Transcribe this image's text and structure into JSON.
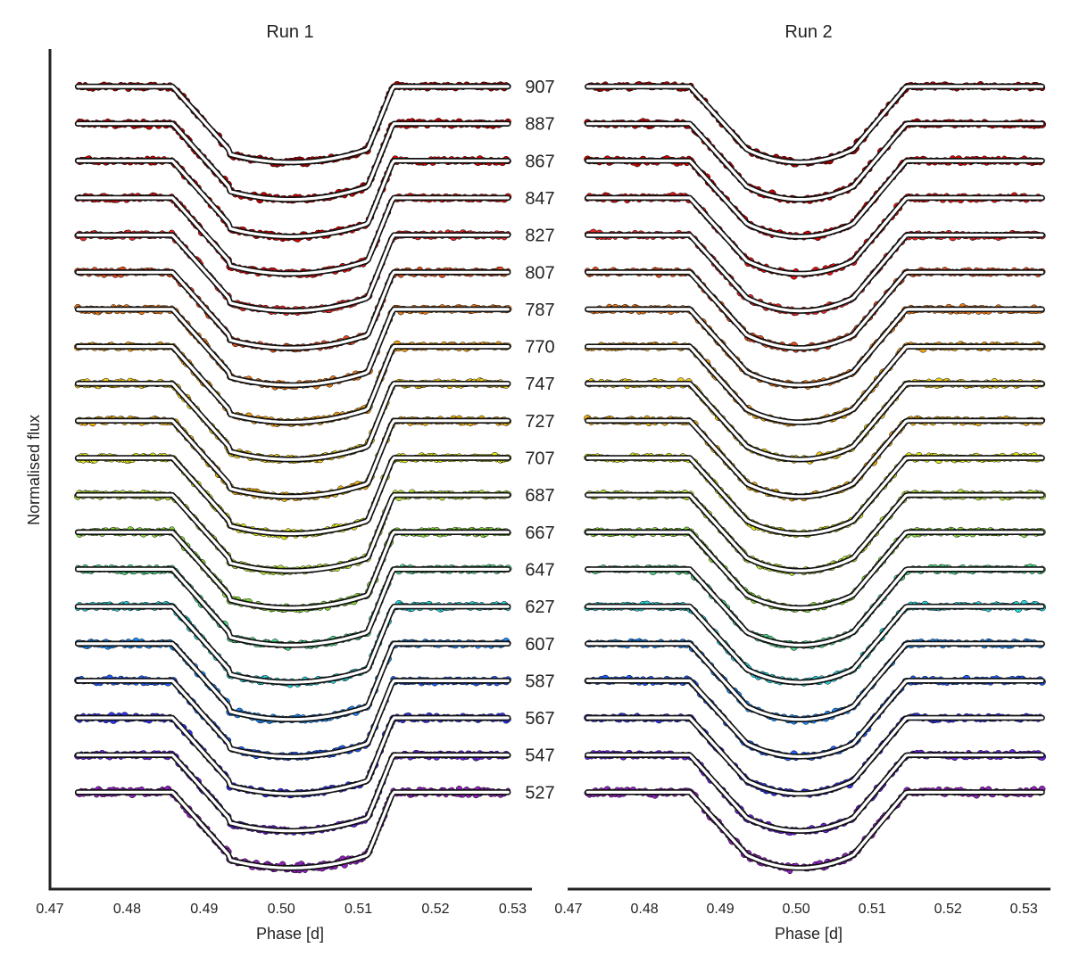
{
  "chart_data": {
    "type": "line",
    "ylabel": "Normalised flux",
    "wavelength_labels": [
      "907",
      "887",
      "867",
      "847",
      "827",
      "807",
      "787",
      "770",
      "747",
      "727",
      "707",
      "687",
      "667",
      "647",
      "627",
      "607",
      "587",
      "567",
      "547",
      "527"
    ],
    "series_colors": [
      "#a80000",
      "#c40000",
      "#d80000",
      "#e21010",
      "#e52828",
      "#e24a1a",
      "#ee7a16",
      "#f2a012",
      "#f5d01a",
      "#f0b010",
      "#e2e818",
      "#b8e63a",
      "#88da3a",
      "#4ed48a",
      "#28d4dc",
      "#1c8cff",
      "#1c5cff",
      "#3030f0",
      "#6a20e0",
      "#9020c0"
    ],
    "panels": [
      {
        "title": "Run 1",
        "xlabel": "Phase [d]",
        "xlim": [
          0.47,
          0.5325
        ],
        "xticks": [
          "0.47",
          "0.48",
          "0.49",
          "0.50",
          "0.51",
          "0.52",
          "0.53"
        ],
        "data_x": [
          0.4736,
          0.5294
        ],
        "transit": {
          "t1": 0.4859,
          "t2": 0.4932,
          "t3": 0.5112,
          "t4": 0.5145,
          "center": 0.5012
        }
      },
      {
        "title": "Run 2",
        "xlabel": "Phase [d]",
        "xlim": [
          0.47,
          0.5335
        ],
        "xticks": [
          "0.47",
          "0.48",
          "0.49",
          "0.50",
          "0.51",
          "0.52",
          "0.53"
        ],
        "data_x": [
          0.4725,
          0.5324
        ],
        "transit": {
          "t1": 0.486,
          "t2": 0.4935,
          "t3": 0.5075,
          "t4": 0.5145,
          "center": 0.5005
        }
      }
    ]
  }
}
